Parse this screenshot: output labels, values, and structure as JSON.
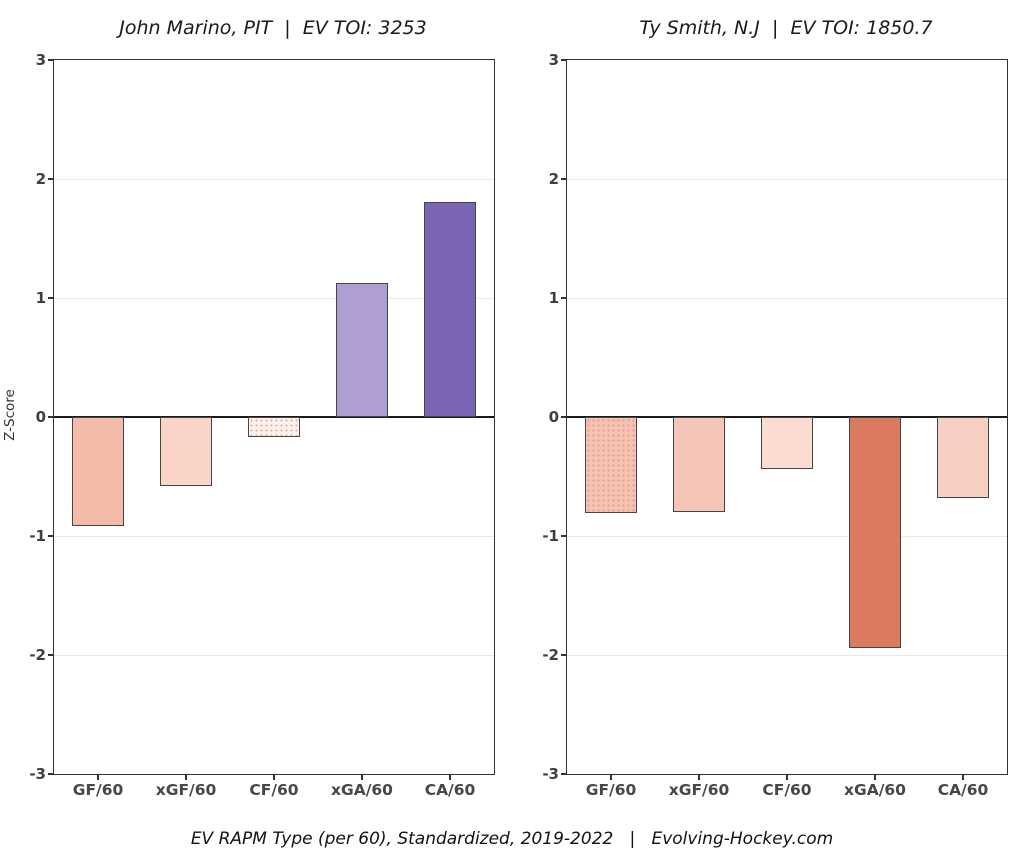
{
  "figure": {
    "ylabel": "Z-Score",
    "caption": "EV RAPM Type (per 60), Standardized, 2019-2022   |   Evolving-Hockey.com",
    "background": "#ffffff",
    "panel_border_color": "#333333",
    "grid_color": "#e8e8e8",
    "zero_line_color": "#1a1a1a",
    "bar_border_color": "#454545",
    "title_color": "#1a1a1a",
    "tick_label_color": "#3f3f3f"
  },
  "chart_data": [
    {
      "type": "bar",
      "title": "John Marino, PIT  |  EV TOI: 3253",
      "player": "John Marino",
      "team": "PIT",
      "ev_toi": "3253",
      "categories": [
        "GF/60",
        "xGF/60",
        "CF/60",
        "xGA/60",
        "CA/60"
      ],
      "values": [
        -0.92,
        -0.58,
        -0.17,
        1.13,
        1.81
      ],
      "bar_colors": [
        "#f3bba8",
        "#f9d4c7",
        "#fdf2ee",
        "#ae9ed1",
        "#7a66b5"
      ],
      "stipple": [
        false,
        false,
        true,
        false,
        false
      ],
      "stipple_dot_colors": [
        null,
        null,
        "#f0a898",
        null,
        null
      ],
      "xlabel": "",
      "ylabel": "Z-Score",
      "ylim": [
        -3,
        3
      ],
      "yticks": [
        3,
        2,
        1,
        0,
        -1,
        -2,
        -3
      ],
      "grid": true,
      "legend": "none"
    },
    {
      "type": "bar",
      "title": "Ty Smith, N.J  |  EV TOI: 1850.7",
      "player": "Ty Smith",
      "team": "N.J",
      "ev_toi": "1850.7",
      "categories": [
        "GF/60",
        "xGF/60",
        "CF/60",
        "xGA/60",
        "CA/60"
      ],
      "values": [
        -0.81,
        -0.8,
        -0.44,
        -1.94,
        -0.68
      ],
      "bar_colors": [
        "#f5c3b2",
        "#f5c6b7",
        "#fadcd2",
        "#da7a5e",
        "#f7cfc2"
      ],
      "stipple": [
        true,
        false,
        false,
        false,
        false
      ],
      "stipple_dot_colors": [
        "#e89b85",
        null,
        null,
        null,
        null
      ],
      "xlabel": "",
      "ylabel": "Z-Score",
      "ylim": [
        -3,
        3
      ],
      "yticks": [
        3,
        2,
        1,
        0,
        -1,
        -2,
        -3
      ],
      "grid": true,
      "legend": "none"
    }
  ]
}
